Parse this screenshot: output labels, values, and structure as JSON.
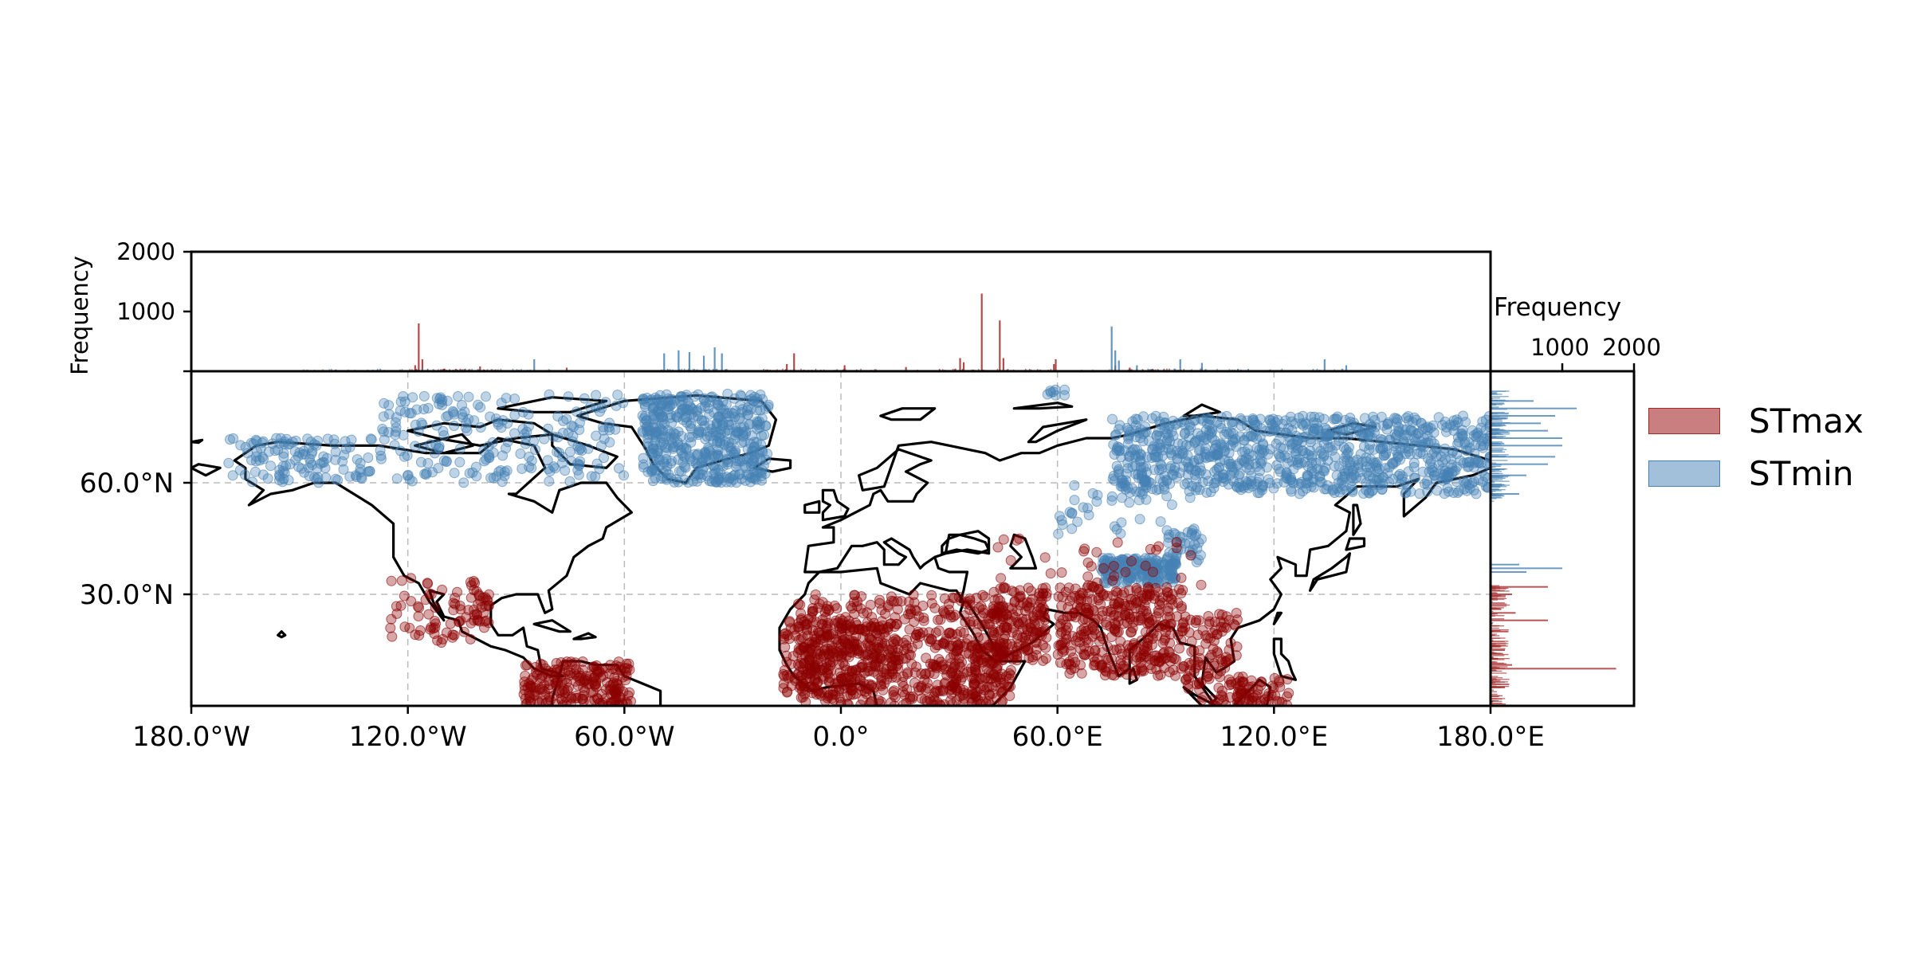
{
  "chart_data": {
    "type": "scatter",
    "panels": {
      "map": {
        "x_ticks": [
          "180.0°W",
          "120.0°W",
          "60.0°W",
          "0.0°",
          "60.0°E",
          "120.0°E",
          "180.0°E"
        ],
        "x_tick_values": [
          -180,
          -120,
          -60,
          0,
          60,
          120,
          180
        ],
        "y_ticks": [
          "30.0°N",
          "60.0°N"
        ],
        "y_tick_values": [
          30,
          60
        ],
        "xlim": [
          -180,
          180
        ],
        "ylim": [
          0,
          90
        ],
        "grid": true,
        "grid_style": "dashed"
      },
      "top_histogram": {
        "ylabel": "Frequency",
        "y_ticks": [
          "1000",
          "2000"
        ],
        "y_tick_values": [
          1000,
          2000
        ],
        "ylim": [
          0,
          2000
        ]
      },
      "right_histogram": {
        "xlabel": "Frequency",
        "x_ticks": [
          "1000",
          "2000"
        ],
        "x_tick_values": [
          1000,
          2000
        ],
        "xlim": [
          0,
          2000
        ]
      }
    },
    "series": [
      {
        "name": "STmax",
        "color": "#8b0000",
        "hist_color": "#a52a2a",
        "lon_peaks": [
          [
            -117,
            800
          ],
          [
            -116,
            200
          ],
          [
            -118,
            100
          ],
          [
            -100,
            80
          ],
          [
            -76,
            60
          ],
          [
            -15,
            120
          ],
          [
            -13,
            300
          ],
          [
            1,
            100
          ],
          [
            18,
            70
          ],
          [
            33,
            220
          ],
          [
            34,
            150
          ],
          [
            39,
            1300
          ],
          [
            44,
            850
          ],
          [
            45,
            220
          ],
          [
            59,
            120
          ],
          [
            59.5,
            200
          ],
          [
            76,
            100
          ],
          [
            80,
            60
          ],
          [
            100,
            60
          ]
        ],
        "lat_peaks": [
          [
            10,
            1750
          ],
          [
            11,
            300
          ],
          [
            5,
            200
          ],
          [
            23,
            800
          ],
          [
            25,
            350
          ],
          [
            26,
            150
          ],
          [
            20,
            250
          ],
          [
            15,
            200
          ],
          [
            30,
            300
          ],
          [
            32,
            800
          ]
        ],
        "clusters": [
          {
            "lon": [
              -125,
              -98
            ],
            "lat": [
              17,
              35
            ],
            "n": 60
          },
          {
            "lon": [
              -108,
              -97
            ],
            "lat": [
              22,
              30
            ],
            "n": 30
          },
          {
            "lon": [
              -88,
              -58
            ],
            "lat": [
              0,
              12
            ],
            "n": 220
          },
          {
            "lon": [
              -16,
              16
            ],
            "lat": [
              3,
              23
            ],
            "n": 280
          },
          {
            "lon": [
              -12,
              45
            ],
            "lat": [
              0,
              30
            ],
            "n": 500
          },
          {
            "lon": [
              28,
              48
            ],
            "lat": [
              0,
              17
            ],
            "n": 120
          },
          {
            "lon": [
              42,
              57
            ],
            "lat": [
              12,
              32
            ],
            "n": 160
          },
          {
            "lon": [
              60,
              95
            ],
            "lat": [
              8,
              32
            ],
            "n": 360
          },
          {
            "lon": [
              95,
              110
            ],
            "lat": [
              0,
              25
            ],
            "n": 110
          },
          {
            "lon": [
              110,
              125
            ],
            "lat": [
              0,
              8
            ],
            "n": 60
          },
          {
            "lon": [
              40,
              100
            ],
            "lat": [
              30,
              45
            ],
            "n": 40
          }
        ]
      },
      {
        "name": "STmin",
        "color": "#4682b4",
        "hist_color": "#4682b4",
        "lon_peaks": [
          [
            -140,
            30
          ],
          [
            -85,
            200
          ],
          [
            -49,
            300
          ],
          [
            -45,
            350
          ],
          [
            -42,
            320
          ],
          [
            -38,
            260
          ],
          [
            -35,
            400
          ],
          [
            -33,
            300
          ],
          [
            75,
            750
          ],
          [
            76,
            350
          ],
          [
            77,
            180
          ],
          [
            82,
            100
          ],
          [
            94,
            200
          ],
          [
            100,
            140
          ],
          [
            110,
            40
          ],
          [
            134,
            200
          ],
          [
            140,
            100
          ]
        ],
        "lat_peaks": [
          [
            62,
            500
          ],
          [
            65,
            800
          ],
          [
            67,
            900
          ],
          [
            70,
            1000
          ],
          [
            72,
            1000
          ],
          [
            74,
            800
          ],
          [
            76,
            700
          ],
          [
            78,
            900
          ],
          [
            80,
            1200
          ],
          [
            82,
            600
          ],
          [
            57,
            400
          ],
          [
            37,
            1000
          ],
          [
            36,
            500
          ],
          [
            38,
            400
          ]
        ],
        "clusters": [
          {
            "lon": [
              -170,
              -130
            ],
            "lat": [
              60,
              72
            ],
            "n": 120
          },
          {
            "lon": [
              -128,
              -60
            ],
            "lat": [
              60,
              84
            ],
            "n": 220
          },
          {
            "lon": [
              -55,
              -20
            ],
            "lat": [
              60,
              84
            ],
            "n": 480
          },
          {
            "lon": [
              75,
              180
            ],
            "lat": [
              57,
              78
            ],
            "n": 950
          },
          {
            "lon": [
              60,
              100
            ],
            "lat": [
              46,
              60
            ],
            "n": 40
          },
          {
            "lon": [
              72,
              93
            ],
            "lat": [
              33,
              40
            ],
            "n": 180
          },
          {
            "lon": [
              90,
              100
            ],
            "lat": [
              38,
              48
            ],
            "n": 40
          },
          {
            "lon": [
              57,
              62
            ],
            "lat": [
              83,
              86
            ],
            "n": 8
          }
        ]
      }
    ],
    "legend": {
      "placement": "right",
      "entries": [
        "STmax",
        "STmin"
      ]
    }
  }
}
